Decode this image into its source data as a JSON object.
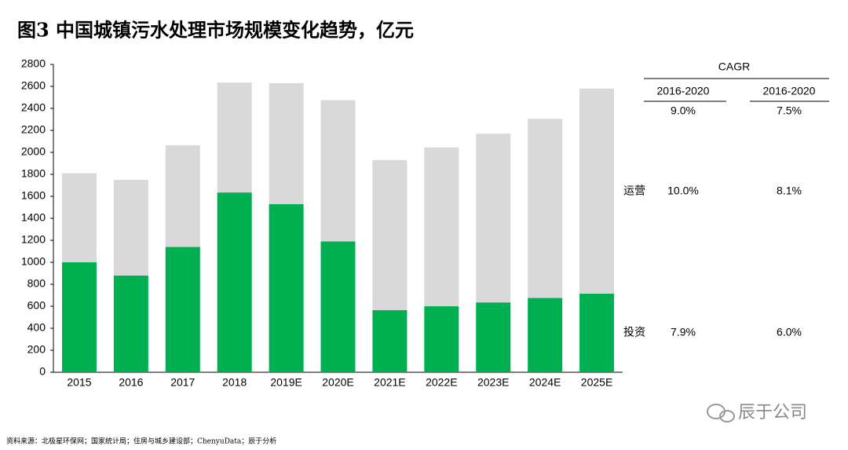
{
  "chart_data": {
    "type": "stacked_bar",
    "title": "图3 中国城镇污水处理市场规模变化趋势，亿元",
    "categories": [
      "2015",
      "2016",
      "2017",
      "2018",
      "2019E",
      "2020E",
      "2021E",
      "2022E",
      "2023E",
      "2024E",
      "2025E"
    ],
    "series": [
      {
        "name": "投资",
        "color": "#00b050",
        "values": [
          1000,
          880,
          1140,
          1635,
          1530,
          1190,
          565,
          600,
          635,
          675,
          715
        ]
      },
      {
        "name": "运营",
        "color": "#d9d9d9",
        "values": [
          810,
          870,
          925,
          1000,
          1100,
          1285,
          1365,
          1445,
          1535,
          1630,
          1865
        ]
      }
    ],
    "ylim": [
      0,
      2800
    ],
    "yticks": [
      0,
      200,
      400,
      600,
      800,
      1000,
      1200,
      1400,
      1600,
      1800,
      2000,
      2200,
      2400,
      2600,
      2800
    ],
    "cagr_table": {
      "title": "CAGR",
      "columns": [
        "2016-2020",
        "2016-2020"
      ],
      "rows": [
        {
          "values": [
            "9.0%",
            "7.5%"
          ]
        },
        {
          "series": 1,
          "values": [
            "10.0%",
            "8.1%"
          ]
        },
        {
          "series": 0,
          "values": [
            "7.9%",
            "6.0%"
          ]
        }
      ]
    },
    "source": "资料来源：北极星环保网；国家统计局；住房与城乡建设部；ChenyuData；辰于分析",
    "watermark": "辰于公司"
  }
}
